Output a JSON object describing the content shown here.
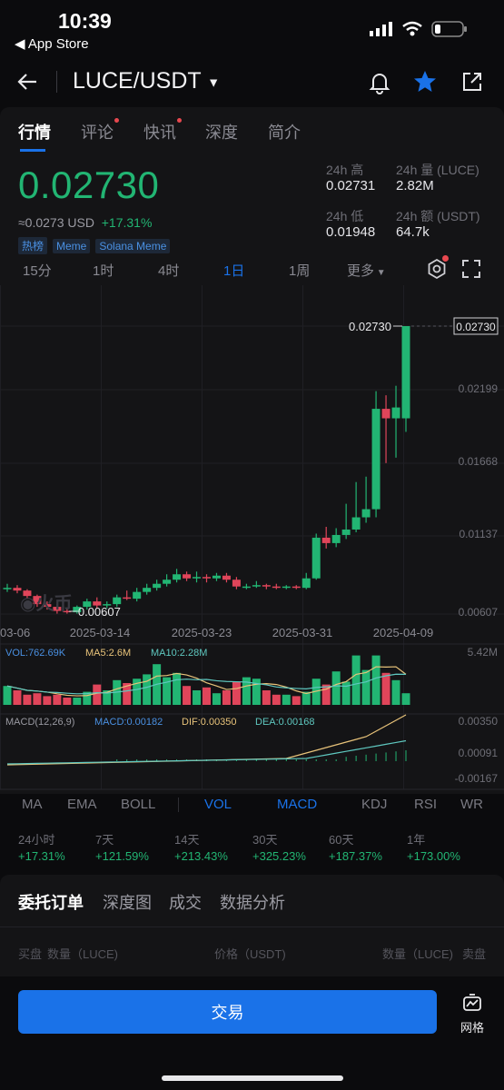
{
  "status": {
    "time": "10:39",
    "back_app": "◀ App Store"
  },
  "header": {
    "pair": "LUCE/USDT"
  },
  "tabs": [
    "行情",
    "评论",
    "快讯",
    "深度",
    "简介"
  ],
  "ticker": {
    "price": "0.02730",
    "usd": "≈0.0273 USD",
    "change": "+17.31%",
    "tags": [
      "热榜",
      "Meme",
      "Solana Meme"
    ],
    "high_label": "24h 高",
    "high": "0.02731",
    "vol_label": "24h 量 (LUCE)",
    "vol": "2.82M",
    "low_label": "24h 低",
    "low": "0.01948",
    "amt_label": "24h 额 (USDT)",
    "amt": "64.7k"
  },
  "timeframes": [
    "15分",
    "1时",
    "4时",
    "1日",
    "1周",
    "更多"
  ],
  "chart_data": {
    "type": "candlestick",
    "x_ticks": [
      "03-06",
      "2025-03-14",
      "2025-03-23",
      "2025-03-31",
      "2025-04-09"
    ],
    "y_ticks": [
      "0.02730",
      "0.02199",
      "0.01668",
      "0.01137",
      "0.00607"
    ],
    "ylim": [
      0.00607,
      0.0273
    ],
    "max_label": "0.02730",
    "min_label": "0.00607",
    "current_label": "0.02730",
    "candles": [
      {
        "o": 0.0079,
        "c": 0.008,
        "h": 0.0083,
        "l": 0.0077
      },
      {
        "o": 0.008,
        "c": 0.0078,
        "h": 0.0082,
        "l": 0.0076
      },
      {
        "o": 0.0078,
        "c": 0.0074,
        "h": 0.0079,
        "l": 0.0072
      },
      {
        "o": 0.0074,
        "c": 0.0068,
        "h": 0.0075,
        "l": 0.0066
      },
      {
        "o": 0.0068,
        "c": 0.0066,
        "h": 0.007,
        "l": 0.0064
      },
      {
        "o": 0.0066,
        "c": 0.0063,
        "h": 0.0068,
        "l": 0.0061
      },
      {
        "o": 0.0063,
        "c": 0.0062,
        "h": 0.0065,
        "l": 0.0061
      },
      {
        "o": 0.0062,
        "c": 0.0066,
        "h": 0.0067,
        "l": 0.0061
      },
      {
        "o": 0.0066,
        "c": 0.007,
        "h": 0.0072,
        "l": 0.0064
      },
      {
        "o": 0.007,
        "c": 0.0067,
        "h": 0.0073,
        "l": 0.0065
      },
      {
        "o": 0.0067,
        "c": 0.0068,
        "h": 0.007,
        "l": 0.0065
      },
      {
        "o": 0.0068,
        "c": 0.0073,
        "h": 0.0075,
        "l": 0.0066
      },
      {
        "o": 0.0073,
        "c": 0.0072,
        "h": 0.0078,
        "l": 0.0071
      },
      {
        "o": 0.0072,
        "c": 0.0077,
        "h": 0.008,
        "l": 0.007
      },
      {
        "o": 0.0077,
        "c": 0.008,
        "h": 0.0083,
        "l": 0.0075
      },
      {
        "o": 0.008,
        "c": 0.0083,
        "h": 0.0086,
        "l": 0.0078
      },
      {
        "o": 0.0083,
        "c": 0.0086,
        "h": 0.009,
        "l": 0.0081
      },
      {
        "o": 0.0086,
        "c": 0.009,
        "h": 0.0094,
        "l": 0.0084
      },
      {
        "o": 0.009,
        "c": 0.0087,
        "h": 0.0092,
        "l": 0.0085
      },
      {
        "o": 0.0087,
        "c": 0.0088,
        "h": 0.0092,
        "l": 0.0084
      },
      {
        "o": 0.0088,
        "c": 0.0087,
        "h": 0.009,
        "l": 0.0084
      },
      {
        "o": 0.0087,
        "c": 0.0089,
        "h": 0.0091,
        "l": 0.0085
      },
      {
        "o": 0.0089,
        "c": 0.0086,
        "h": 0.0091,
        "l": 0.0084
      },
      {
        "o": 0.0086,
        "c": 0.0081,
        "h": 0.0088,
        "l": 0.0079
      },
      {
        "o": 0.0081,
        "c": 0.0081,
        "h": 0.0083,
        "l": 0.0079
      },
      {
        "o": 0.0081,
        "c": 0.0082,
        "h": 0.0085,
        "l": 0.008
      },
      {
        "o": 0.0082,
        "c": 0.0081,
        "h": 0.0083,
        "l": 0.0079
      },
      {
        "o": 0.0081,
        "c": 0.008,
        "h": 0.0083,
        "l": 0.0079
      },
      {
        "o": 0.008,
        "c": 0.0081,
        "h": 0.0082,
        "l": 0.0079
      },
      {
        "o": 0.0081,
        "c": 0.008,
        "h": 0.0082,
        "l": 0.0079
      },
      {
        "o": 0.008,
        "c": 0.0087,
        "h": 0.0091,
        "l": 0.0079
      },
      {
        "o": 0.0087,
        "c": 0.0117,
        "h": 0.012,
        "l": 0.0086
      },
      {
        "o": 0.0117,
        "c": 0.0113,
        "h": 0.0125,
        "l": 0.0109
      },
      {
        "o": 0.0113,
        "c": 0.0119,
        "h": 0.0124,
        "l": 0.011
      },
      {
        "o": 0.0119,
        "c": 0.0123,
        "h": 0.0142,
        "l": 0.0116
      },
      {
        "o": 0.0123,
        "c": 0.0132,
        "h": 0.0158,
        "l": 0.0121
      },
      {
        "o": 0.0132,
        "c": 0.0138,
        "h": 0.0162,
        "l": 0.0128
      },
      {
        "o": 0.0138,
        "c": 0.0212,
        "h": 0.0225,
        "l": 0.0132
      },
      {
        "o": 0.0212,
        "c": 0.0205,
        "h": 0.0222,
        "l": 0.0172
      },
      {
        "o": 0.0205,
        "c": 0.0213,
        "h": 0.0229,
        "l": 0.0176
      },
      {
        "o": 0.0205,
        "c": 0.0273,
        "h": 0.0273,
        "l": 0.0195
      }
    ],
    "volume": {
      "label": "VOL:762.69K",
      "ma5": "MA5:2.6M",
      "ma10": "MA10:2.28M",
      "max": "5.42M",
      "values": [
        1.3,
        1.0,
        0.7,
        0.8,
        0.6,
        0.7,
        0.5,
        0.5,
        0.9,
        1.4,
        1.0,
        1.7,
        1.5,
        1.8,
        2.1,
        2.8,
        1.9,
        2.2,
        1.3,
        1.0,
        1.2,
        0.8,
        1.0,
        1.6,
        1.9,
        1.8,
        1.0,
        0.7,
        0.7,
        0.6,
        0.9,
        1.8,
        1.4,
        2.3,
        1.6,
        3.4,
        2.4,
        3.4,
        2.2,
        1.7,
        0.8
      ]
    },
    "macd": {
      "label": "MACD(12,26,9)",
      "macd": "MACD:0.00182",
      "dif": "DIF:0.00350",
      "dea": "DEA:0.00168",
      "y_ticks": [
        "0.00350",
        "0.00091",
        "-0.00167"
      ]
    }
  },
  "indicators": [
    "MA",
    "EMA",
    "BOLL",
    "VOL",
    "MACD",
    "KDJ",
    "RSI",
    "WR"
  ],
  "performance": [
    {
      "k": "24小时",
      "v": "+17.31%"
    },
    {
      "k": "7天",
      "v": "+121.59%"
    },
    {
      "k": "14天",
      "v": "+213.43%"
    },
    {
      "k": "30天",
      "v": "+325.23%"
    },
    {
      "k": "60天",
      "v": "+187.37%"
    },
    {
      "k": "1年",
      "v": "+173.00%"
    }
  ],
  "bottom_tabs": [
    "委托订单",
    "深度图",
    "成交",
    "数据分析"
  ],
  "orderbook": {
    "buy": "买盘",
    "qty_l": "数量（LUCE)",
    "price": "价格（USDT)",
    "qty_r": "数量（LUCE)",
    "sell": "卖盘"
  },
  "actions": {
    "trade": "交易",
    "grid": "网格"
  },
  "watermark": "火币",
  "colors": {
    "up": "#22b573",
    "down": "#e0455a",
    "accent": "#1a72e8"
  }
}
